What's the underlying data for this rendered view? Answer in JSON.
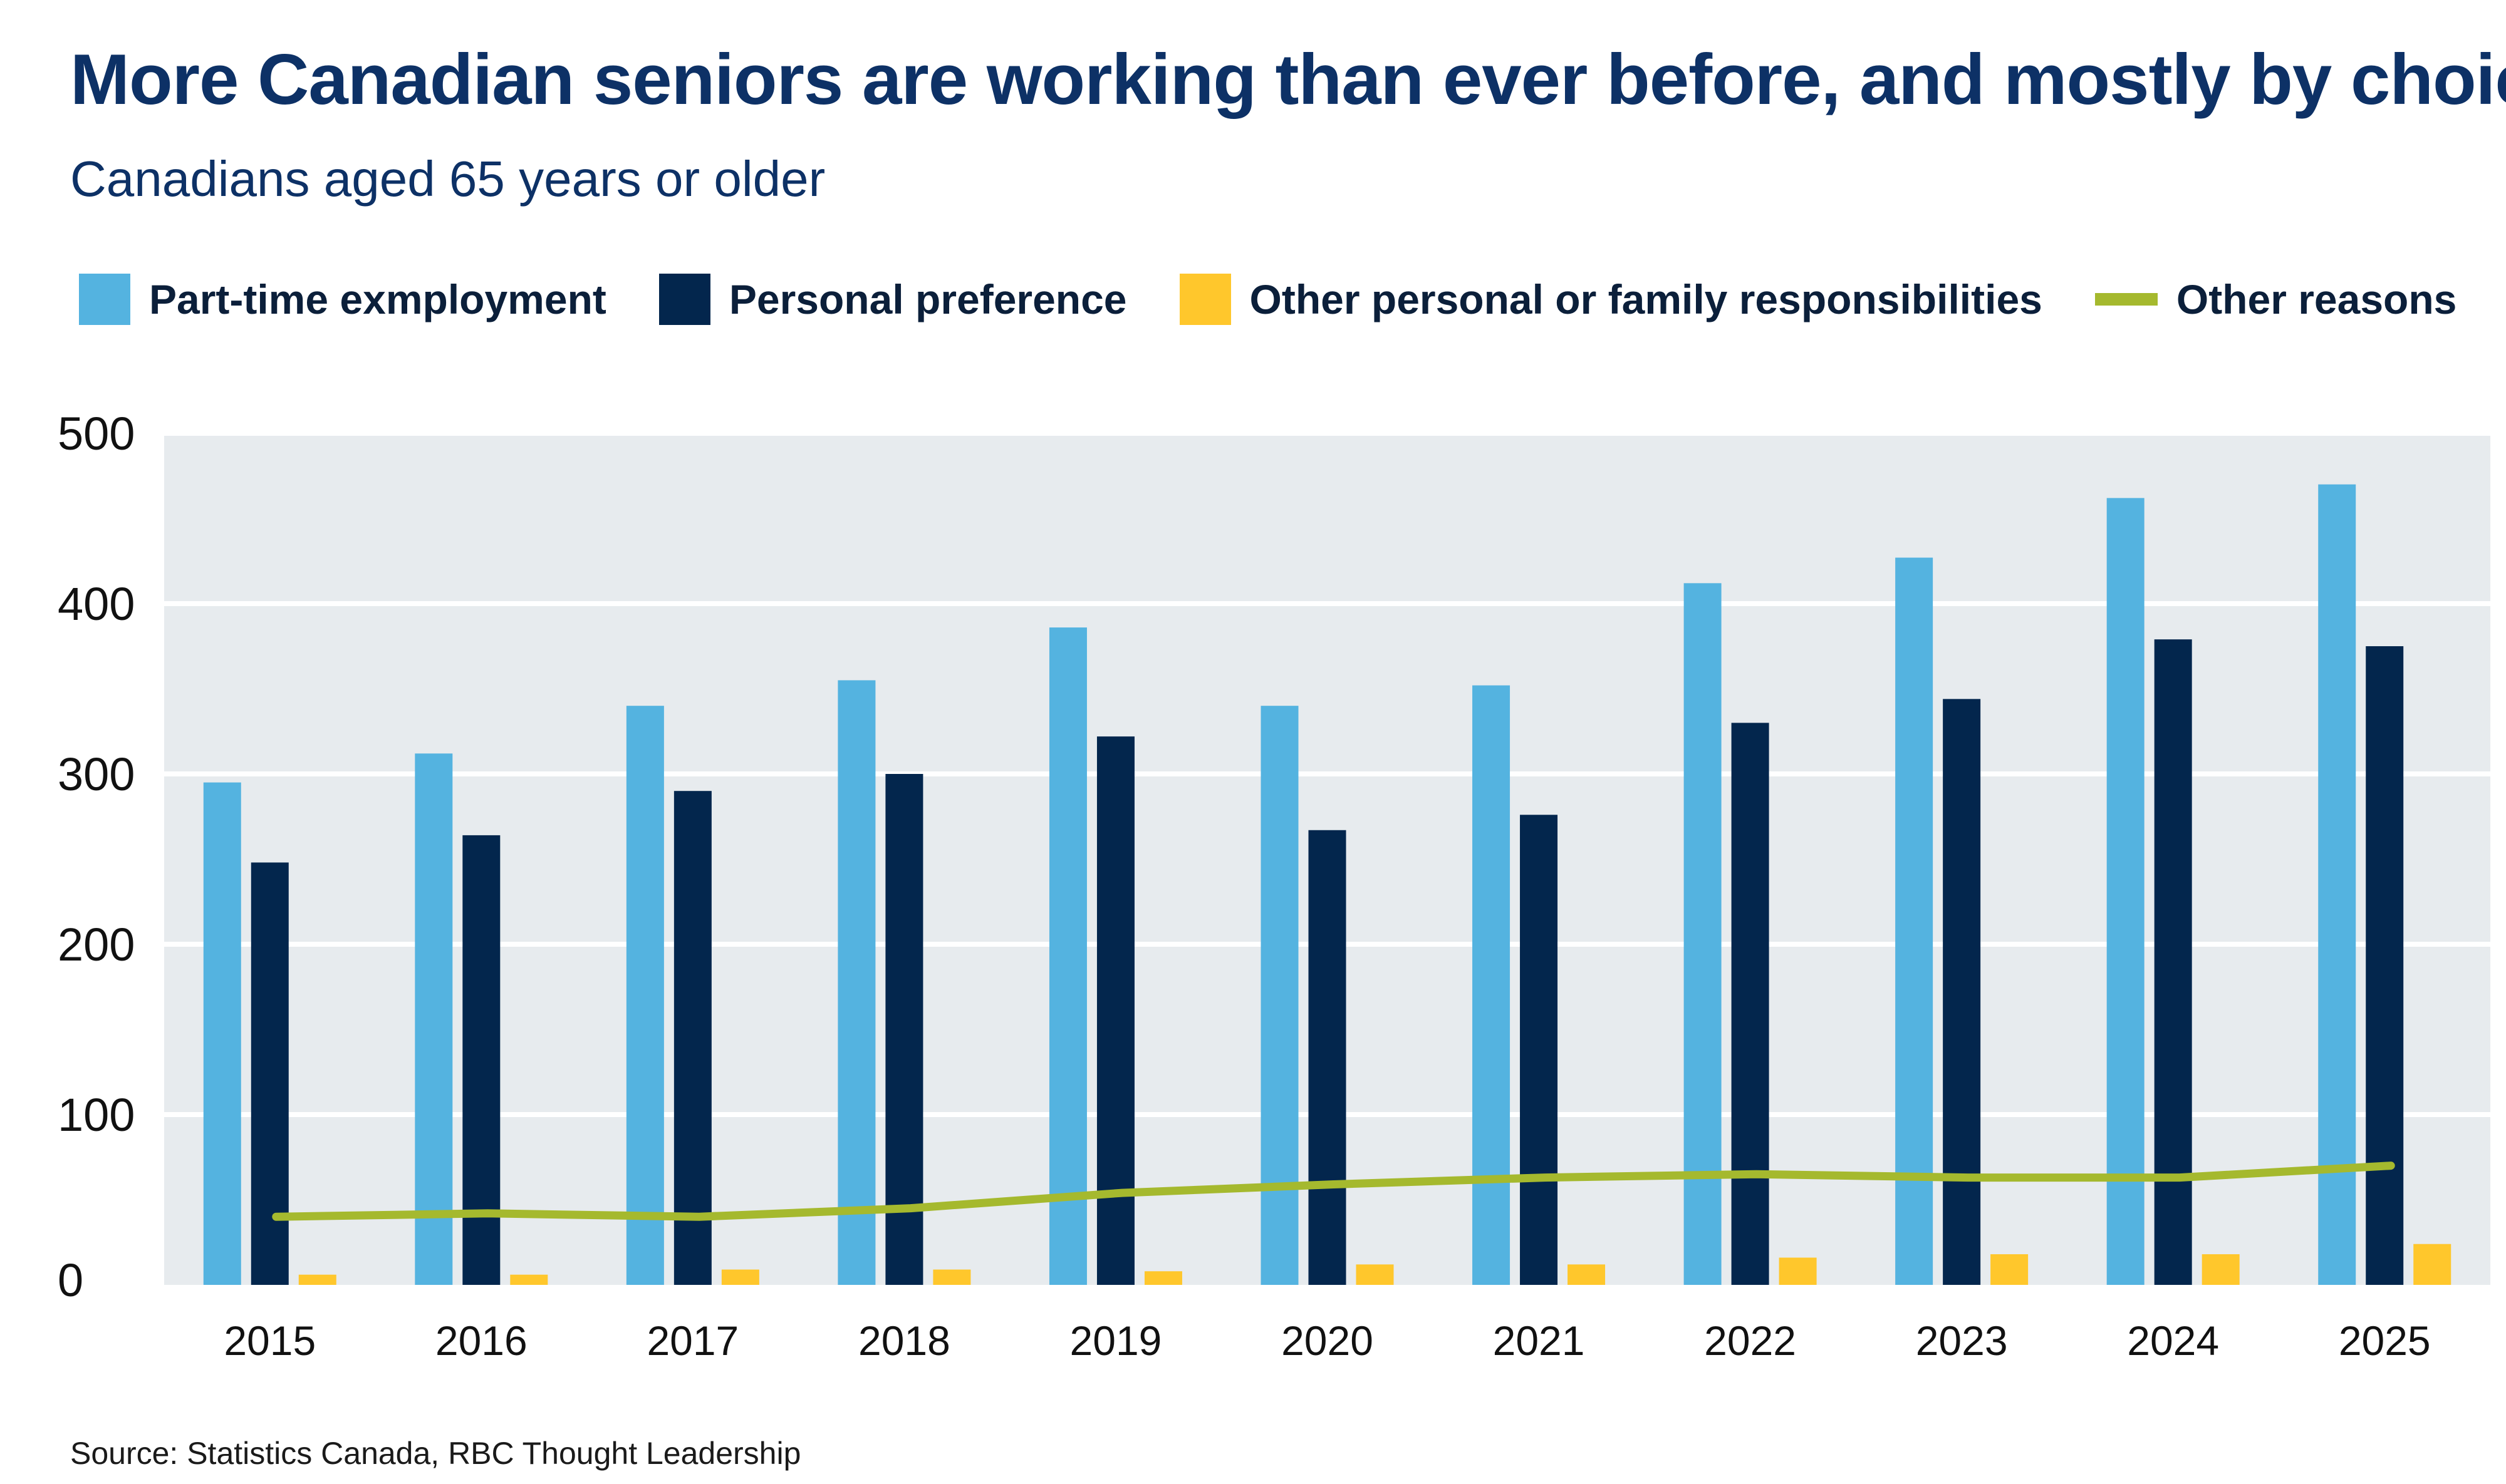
{
  "header": {
    "title": "More Canadian seniors are working than ever before, and mostly by choice",
    "subtitle": "Canadians aged 65 years or older"
  },
  "footer": {
    "source": "Source: Statistics Canada, RBC Thought Leadership"
  },
  "colors": {
    "plot_background": "#e7ebee",
    "gridline": "#ffffff",
    "part_time": "#54b3e0",
    "personal_preference": "#03264d",
    "other_personal": "#ffc72c",
    "other_reasons": "#a5b92e"
  },
  "chart_data": {
    "type": "bar",
    "categories": [
      "2015",
      "2016",
      "2017",
      "2018",
      "2019",
      "2020",
      "2021",
      "2022",
      "2023",
      "2024",
      "2025"
    ],
    "ylim": [
      0,
      500
    ],
    "yticks": [
      "0",
      "100",
      "200",
      "300",
      "400",
      "500"
    ],
    "grid": true,
    "legend_position": "top",
    "series": [
      {
        "name": "Part-time exmployment",
        "type": "bar",
        "color": "#54b3e0",
        "values": [
          295,
          312,
          340,
          355,
          386,
          340,
          352,
          412,
          427,
          462,
          470
        ]
      },
      {
        "name": "Personal preference",
        "type": "bar",
        "color": "#03264d",
        "values": [
          248,
          264,
          290,
          300,
          322,
          267,
          276,
          330,
          344,
          379,
          375
        ]
      },
      {
        "name": "Other personal or family responsibilities",
        "type": "bar",
        "color": "#ffc72c",
        "values": [
          6,
          6,
          9,
          9,
          8,
          12,
          12,
          16,
          18,
          18,
          24
        ]
      },
      {
        "name": "Other reasons",
        "type": "line",
        "color": "#a5b92e",
        "values": [
          40,
          42,
          40,
          45,
          54,
          59,
          63,
          65,
          63,
          63,
          70
        ]
      }
    ]
  }
}
